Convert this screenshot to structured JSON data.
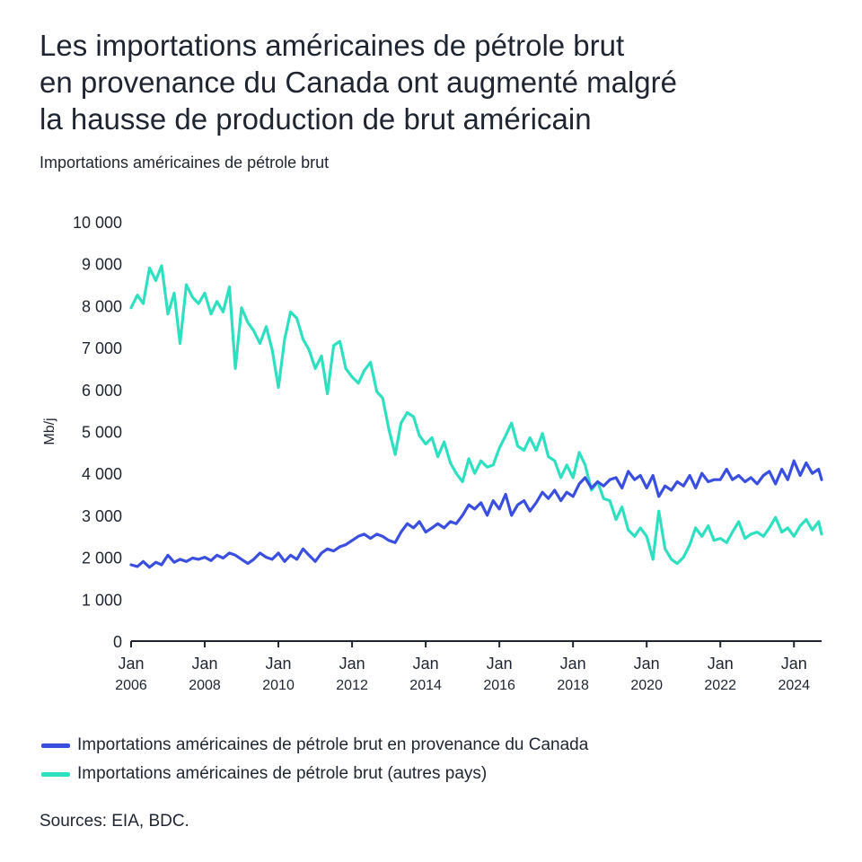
{
  "title_lines": [
    "Les importations américaines de pétrole brut",
    "en provenance du Canada ont augmenté malgré",
    "la hausse de production de brut américain"
  ],
  "subtitle": "Importations américaines de pétrole brut",
  "source": "Sources: EIA, BDC.",
  "colors": {
    "canada": "#3a4fe0",
    "other": "#2fe0c0",
    "axis": "#1f2530"
  },
  "chart_data": {
    "type": "line",
    "ylabel": "Mb/j",
    "ylim": [
      0,
      10000
    ],
    "xlim": [
      2006.0,
      2024.75
    ],
    "y_ticks": [
      {
        "v": 0,
        "label": "0"
      },
      {
        "v": 1000,
        "label": "1 000"
      },
      {
        "v": 2000,
        "label": "2 000"
      },
      {
        "v": 3000,
        "label": "3 000"
      },
      {
        "v": 4000,
        "label": "4 000"
      },
      {
        "v": 5000,
        "label": "5 000"
      },
      {
        "v": 6000,
        "label": "6 000"
      },
      {
        "v": 7000,
        "label": "7 000"
      },
      {
        "v": 8000,
        "label": "8 000"
      },
      {
        "v": 9000,
        "label": "9 000"
      },
      {
        "v": 10000,
        "label": "10 000"
      }
    ],
    "x_ticks": [
      {
        "v": 2006,
        "line1": "Jan",
        "line2": "2006"
      },
      {
        "v": 2008,
        "line1": "Jan",
        "line2": "2008"
      },
      {
        "v": 2010,
        "line1": "Jan",
        "line2": "2010"
      },
      {
        "v": 2012,
        "line1": "Jan",
        "line2": "2012"
      },
      {
        "v": 2014,
        "line1": "Jan",
        "line2": "2014"
      },
      {
        "v": 2016,
        "line1": "Jan",
        "line2": "2016"
      },
      {
        "v": 2018,
        "line1": "Jan",
        "line2": "2018"
      },
      {
        "v": 2020,
        "line1": "Jan",
        "line2": "2020"
      },
      {
        "v": 2022,
        "line1": "Jan",
        "line2": "2022"
      },
      {
        "v": 2024,
        "line1": "Jan",
        "line2": "2024"
      }
    ],
    "series": [
      {
        "name": "Importations américaines de pétrole brut en provenance du Canada",
        "key": "canada",
        "points": [
          [
            2006.0,
            1820
          ],
          [
            2006.17,
            1780
          ],
          [
            2006.33,
            1900
          ],
          [
            2006.5,
            1760
          ],
          [
            2006.67,
            1880
          ],
          [
            2006.83,
            1820
          ],
          [
            2007.0,
            2050
          ],
          [
            2007.17,
            1880
          ],
          [
            2007.33,
            1950
          ],
          [
            2007.5,
            1900
          ],
          [
            2007.67,
            1980
          ],
          [
            2007.83,
            1950
          ],
          [
            2008.0,
            2000
          ],
          [
            2008.17,
            1920
          ],
          [
            2008.33,
            2050
          ],
          [
            2008.5,
            1980
          ],
          [
            2008.67,
            2100
          ],
          [
            2008.83,
            2050
          ],
          [
            2009.0,
            1950
          ],
          [
            2009.17,
            1850
          ],
          [
            2009.33,
            1950
          ],
          [
            2009.5,
            2100
          ],
          [
            2009.67,
            2000
          ],
          [
            2009.83,
            1950
          ],
          [
            2010.0,
            2100
          ],
          [
            2010.17,
            1900
          ],
          [
            2010.33,
            2050
          ],
          [
            2010.5,
            1950
          ],
          [
            2010.67,
            2200
          ],
          [
            2010.83,
            2050
          ],
          [
            2011.0,
            1900
          ],
          [
            2011.17,
            2100
          ],
          [
            2011.33,
            2200
          ],
          [
            2011.5,
            2150
          ],
          [
            2011.67,
            2250
          ],
          [
            2011.83,
            2300
          ],
          [
            2012.0,
            2400
          ],
          [
            2012.17,
            2500
          ],
          [
            2012.33,
            2550
          ],
          [
            2012.5,
            2450
          ],
          [
            2012.67,
            2550
          ],
          [
            2012.83,
            2500
          ],
          [
            2013.0,
            2400
          ],
          [
            2013.17,
            2350
          ],
          [
            2013.33,
            2600
          ],
          [
            2013.5,
            2800
          ],
          [
            2013.67,
            2700
          ],
          [
            2013.83,
            2850
          ],
          [
            2014.0,
            2600
          ],
          [
            2014.17,
            2700
          ],
          [
            2014.33,
            2800
          ],
          [
            2014.5,
            2700
          ],
          [
            2014.67,
            2850
          ],
          [
            2014.83,
            2800
          ],
          [
            2015.0,
            3000
          ],
          [
            2015.17,
            3250
          ],
          [
            2015.33,
            3150
          ],
          [
            2015.5,
            3300
          ],
          [
            2015.67,
            3000
          ],
          [
            2015.83,
            3350
          ],
          [
            2016.0,
            3150
          ],
          [
            2016.17,
            3500
          ],
          [
            2016.33,
            3000
          ],
          [
            2016.5,
            3250
          ],
          [
            2016.67,
            3350
          ],
          [
            2016.83,
            3100
          ],
          [
            2017.0,
            3300
          ],
          [
            2017.17,
            3550
          ],
          [
            2017.33,
            3400
          ],
          [
            2017.5,
            3600
          ],
          [
            2017.67,
            3350
          ],
          [
            2017.83,
            3550
          ],
          [
            2018.0,
            3450
          ],
          [
            2018.17,
            3750
          ],
          [
            2018.33,
            3900
          ],
          [
            2018.5,
            3650
          ],
          [
            2018.67,
            3800
          ],
          [
            2018.83,
            3700
          ],
          [
            2019.0,
            3850
          ],
          [
            2019.17,
            3900
          ],
          [
            2019.33,
            3650
          ],
          [
            2019.5,
            4050
          ],
          [
            2019.67,
            3850
          ],
          [
            2019.83,
            3950
          ],
          [
            2020.0,
            3650
          ],
          [
            2020.17,
            3950
          ],
          [
            2020.33,
            3450
          ],
          [
            2020.5,
            3700
          ],
          [
            2020.67,
            3600
          ],
          [
            2020.83,
            3800
          ],
          [
            2021.0,
            3700
          ],
          [
            2021.17,
            3950
          ],
          [
            2021.33,
            3650
          ],
          [
            2021.5,
            4000
          ],
          [
            2021.67,
            3800
          ],
          [
            2021.83,
            3850
          ],
          [
            2022.0,
            3850
          ],
          [
            2022.17,
            4100
          ],
          [
            2022.33,
            3850
          ],
          [
            2022.5,
            3950
          ],
          [
            2022.67,
            3800
          ],
          [
            2022.83,
            3900
          ],
          [
            2023.0,
            3750
          ],
          [
            2023.17,
            3950
          ],
          [
            2023.33,
            4050
          ],
          [
            2023.5,
            3750
          ],
          [
            2023.67,
            4100
          ],
          [
            2023.83,
            3850
          ],
          [
            2024.0,
            4300
          ],
          [
            2024.17,
            3950
          ],
          [
            2024.33,
            4250
          ],
          [
            2024.5,
            4000
          ],
          [
            2024.67,
            4100
          ],
          [
            2024.75,
            3850
          ]
        ]
      },
      {
        "name": "Importations américaines de pétrole brut (autres pays)",
        "key": "other",
        "points": [
          [
            2006.0,
            7950
          ],
          [
            2006.17,
            8250
          ],
          [
            2006.33,
            8050
          ],
          [
            2006.5,
            8900
          ],
          [
            2006.67,
            8600
          ],
          [
            2006.83,
            8950
          ],
          [
            2007.0,
            7800
          ],
          [
            2007.17,
            8300
          ],
          [
            2007.33,
            7100
          ],
          [
            2007.5,
            8500
          ],
          [
            2007.67,
            8200
          ],
          [
            2007.83,
            8050
          ],
          [
            2008.0,
            8300
          ],
          [
            2008.17,
            7800
          ],
          [
            2008.33,
            8100
          ],
          [
            2008.5,
            7850
          ],
          [
            2008.67,
            8450
          ],
          [
            2008.83,
            6500
          ],
          [
            2009.0,
            7950
          ],
          [
            2009.17,
            7600
          ],
          [
            2009.33,
            7400
          ],
          [
            2009.5,
            7100
          ],
          [
            2009.67,
            7500
          ],
          [
            2009.83,
            6950
          ],
          [
            2010.0,
            6050
          ],
          [
            2010.17,
            7200
          ],
          [
            2010.33,
            7850
          ],
          [
            2010.5,
            7700
          ],
          [
            2010.67,
            7200
          ],
          [
            2010.83,
            6950
          ],
          [
            2011.0,
            6500
          ],
          [
            2011.17,
            6800
          ],
          [
            2011.33,
            5900
          ],
          [
            2011.5,
            7050
          ],
          [
            2011.67,
            7150
          ],
          [
            2011.83,
            6500
          ],
          [
            2012.0,
            6300
          ],
          [
            2012.17,
            6150
          ],
          [
            2012.33,
            6450
          ],
          [
            2012.5,
            6650
          ],
          [
            2012.67,
            5950
          ],
          [
            2012.83,
            5800
          ],
          [
            2013.0,
            5050
          ],
          [
            2013.17,
            4450
          ],
          [
            2013.33,
            5200
          ],
          [
            2013.5,
            5450
          ],
          [
            2013.67,
            5350
          ],
          [
            2013.83,
            4900
          ],
          [
            2014.0,
            4700
          ],
          [
            2014.17,
            4850
          ],
          [
            2014.33,
            4400
          ],
          [
            2014.5,
            4750
          ],
          [
            2014.67,
            4250
          ],
          [
            2014.83,
            4000
          ],
          [
            2015.0,
            3800
          ],
          [
            2015.17,
            4350
          ],
          [
            2015.33,
            4000
          ],
          [
            2015.5,
            4300
          ],
          [
            2015.67,
            4150
          ],
          [
            2015.83,
            4200
          ],
          [
            2016.0,
            4600
          ],
          [
            2016.17,
            4900
          ],
          [
            2016.33,
            5200
          ],
          [
            2016.5,
            4650
          ],
          [
            2016.67,
            4550
          ],
          [
            2016.83,
            4850
          ],
          [
            2017.0,
            4550
          ],
          [
            2017.17,
            4950
          ],
          [
            2017.33,
            4400
          ],
          [
            2017.5,
            4300
          ],
          [
            2017.67,
            3900
          ],
          [
            2017.83,
            4200
          ],
          [
            2018.0,
            3900
          ],
          [
            2018.17,
            4500
          ],
          [
            2018.33,
            4200
          ],
          [
            2018.5,
            3600
          ],
          [
            2018.67,
            3800
          ],
          [
            2018.83,
            3400
          ],
          [
            2019.0,
            3350
          ],
          [
            2019.17,
            2900
          ],
          [
            2019.33,
            3200
          ],
          [
            2019.5,
            2650
          ],
          [
            2019.67,
            2500
          ],
          [
            2019.83,
            2700
          ],
          [
            2020.0,
            2500
          ],
          [
            2020.17,
            1950
          ],
          [
            2020.33,
            3100
          ],
          [
            2020.5,
            2200
          ],
          [
            2020.67,
            1950
          ],
          [
            2020.83,
            1850
          ],
          [
            2021.0,
            2000
          ],
          [
            2021.17,
            2300
          ],
          [
            2021.33,
            2700
          ],
          [
            2021.5,
            2500
          ],
          [
            2021.67,
            2750
          ],
          [
            2021.83,
            2400
          ],
          [
            2022.0,
            2450
          ],
          [
            2022.17,
            2350
          ],
          [
            2022.33,
            2600
          ],
          [
            2022.5,
            2850
          ],
          [
            2022.67,
            2450
          ],
          [
            2022.83,
            2550
          ],
          [
            2023.0,
            2600
          ],
          [
            2023.17,
            2500
          ],
          [
            2023.33,
            2700
          ],
          [
            2023.5,
            2950
          ],
          [
            2023.67,
            2600
          ],
          [
            2023.83,
            2700
          ],
          [
            2024.0,
            2500
          ],
          [
            2024.17,
            2750
          ],
          [
            2024.33,
            2900
          ],
          [
            2024.5,
            2650
          ],
          [
            2024.67,
            2850
          ],
          [
            2024.75,
            2550
          ]
        ]
      }
    ]
  }
}
